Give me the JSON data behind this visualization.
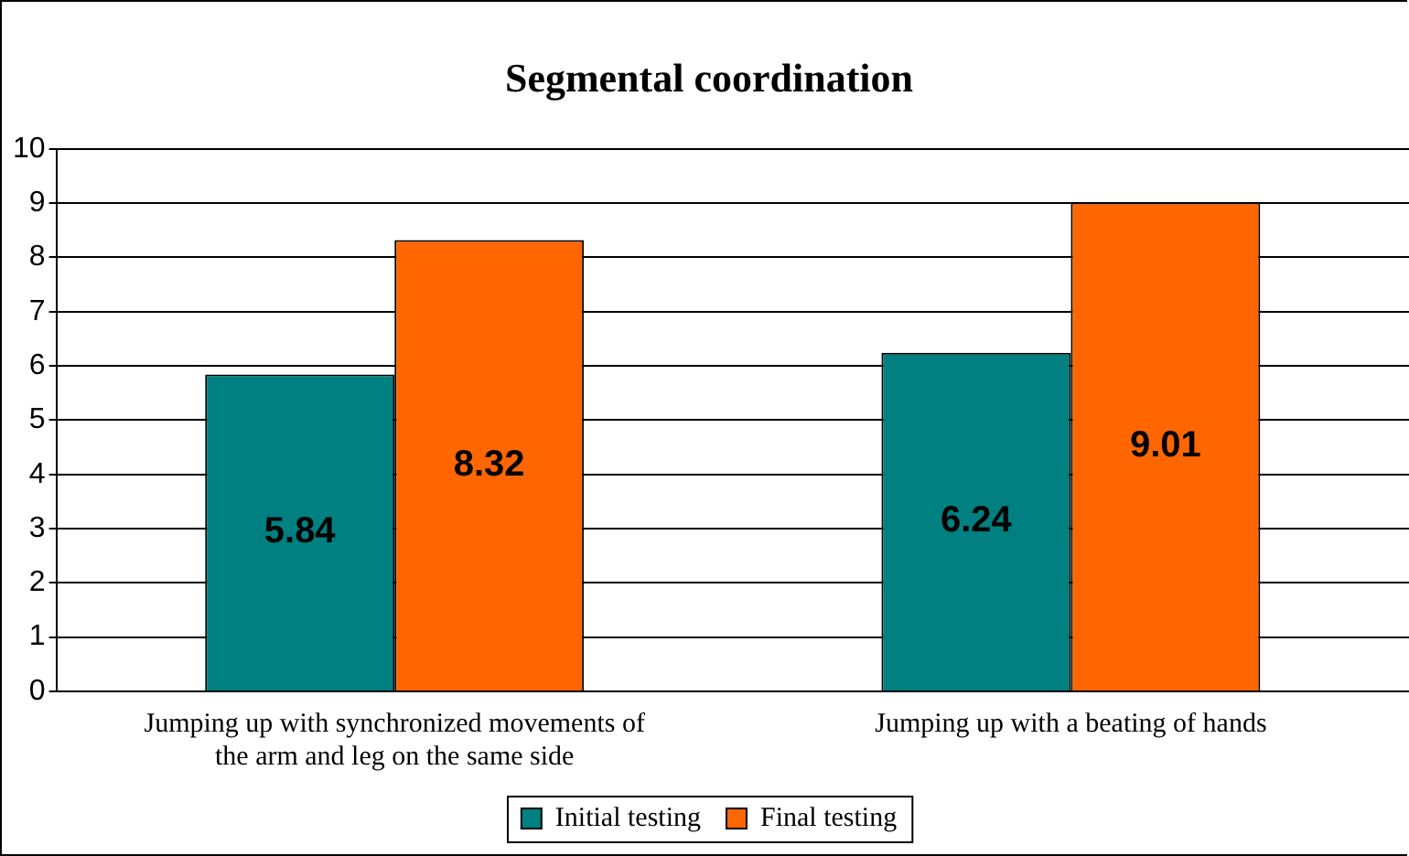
{
  "chart_data": {
    "type": "bar",
    "title": "Segmental coordination",
    "categories": [
      "Jumping up with synchronized movements of the arm and leg on the same side",
      "Jumping up with a beating of hands"
    ],
    "series": [
      {
        "name": "Initial testing",
        "color": "#008080",
        "values": [
          5.84,
          6.24
        ]
      },
      {
        "name": "Final testing",
        "color": "#ff6600",
        "values": [
          8.32,
          9.01
        ]
      }
    ],
    "ylim": [
      0,
      10
    ],
    "yticks": [
      0,
      1,
      2,
      3,
      4,
      5,
      6,
      7,
      8,
      9,
      10
    ],
    "grid": "y",
    "legend": "bottom",
    "data_labels": true
  }
}
